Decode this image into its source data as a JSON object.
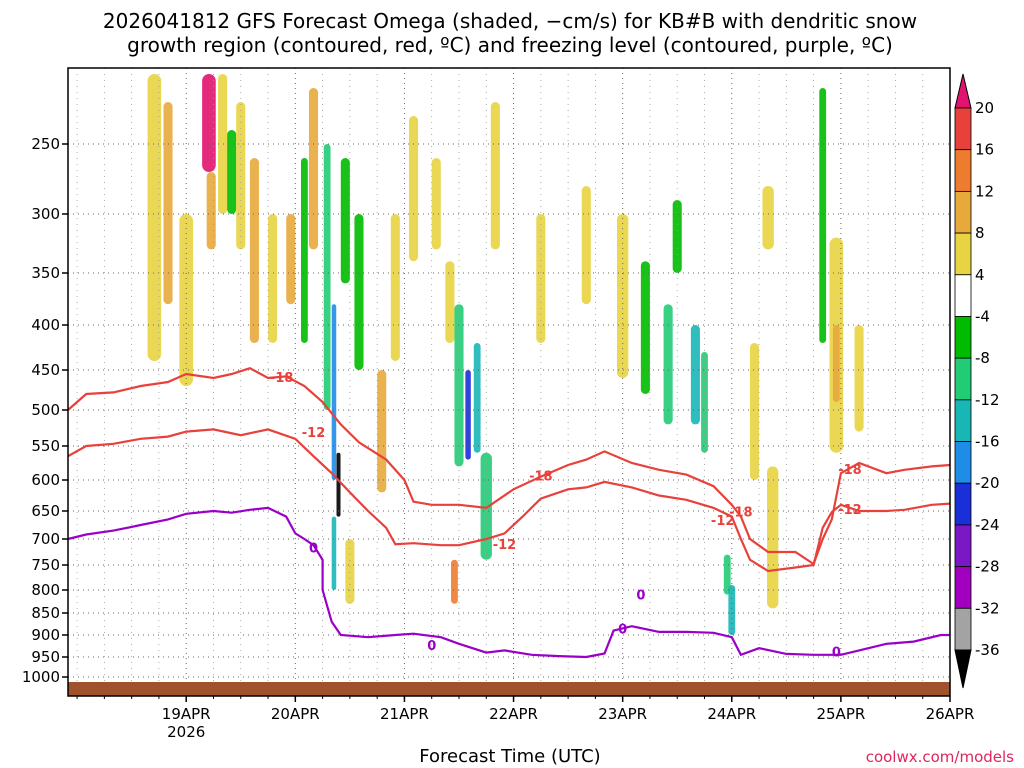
{
  "chart_data": {
    "type": "heatmap",
    "title_line1": "2026041812 GFS Forecast Omega (shaded, −cm/s) for KB#B with dendritic snow",
    "title_line2": "growth region (contoured, red, ºC) and freezing level (contoured, purple, ºC)",
    "xlabel": "Forecast Time (UTC)",
    "credit": "coolwx.com/models",
    "x_ticks": [
      {
        "label": "19APR",
        "sub": "2026",
        "hour": 12
      },
      {
        "label": "20APR",
        "sub": "",
        "hour": 36
      },
      {
        "label": "21APR",
        "sub": "",
        "hour": 60
      },
      {
        "label": "22APR",
        "sub": "",
        "hour": 84
      },
      {
        "label": "23APR",
        "sub": "",
        "hour": 108
      },
      {
        "label": "24APR",
        "sub": "",
        "hour": 132
      },
      {
        "label": "25APR",
        "sub": "",
        "hour": 156
      },
      {
        "label": "26APR",
        "sub": "",
        "hour": 180
      }
    ],
    "xlim": [
      -14,
      180
    ],
    "y_ticks": [
      250,
      300,
      350,
      400,
      450,
      500,
      550,
      600,
      650,
      700,
      750,
      800,
      850,
      900,
      950,
      1000
    ],
    "ylim": [
      200,
      1025
    ],
    "colorbar": {
      "labels": [
        "20",
        "16",
        "12",
        "8",
        "4",
        "-4",
        "-8",
        "-12",
        "-16",
        "-20",
        "-24",
        "-28",
        "-32",
        "-36"
      ],
      "colors": [
        "#e8413b",
        "#ee7c2f",
        "#e8a93c",
        "#e8d442",
        "#ffffff",
        "#00bb00",
        "#22cc77",
        "#19b6b6",
        "#1f8ce8",
        "#1b2fd9",
        "#7b17c4",
        "#a100c0",
        "#a3a3a3"
      ],
      "top_arrow": "#e01470",
      "bottom_arrow": "#000000"
    },
    "contours": [
      {
        "name": "-18C",
        "color": "#e8413b",
        "label": "-18",
        "points": [
          [
            -14,
            500
          ],
          [
            -10,
            480
          ],
          [
            -4,
            478
          ],
          [
            2,
            470
          ],
          [
            8,
            465
          ],
          [
            12,
            455
          ],
          [
            18,
            460
          ],
          [
            22,
            455
          ],
          [
            26,
            448
          ],
          [
            30,
            460
          ],
          [
            34,
            458
          ],
          [
            38,
            470
          ],
          [
            42,
            490
          ],
          [
            46,
            520
          ],
          [
            50,
            545
          ],
          [
            56,
            570
          ],
          [
            60,
            600
          ],
          [
            62,
            635
          ],
          [
            66,
            640
          ],
          [
            72,
            640
          ],
          [
            78,
            645
          ],
          [
            84,
            615
          ],
          [
            90,
            595
          ],
          [
            96,
            578
          ],
          [
            100,
            570
          ],
          [
            104,
            558
          ],
          [
            110,
            575
          ],
          [
            116,
            585
          ],
          [
            122,
            592
          ],
          [
            128,
            610
          ],
          [
            132,
            640
          ],
          [
            134,
            660
          ],
          [
            136,
            700
          ],
          [
            140,
            725
          ],
          [
            146,
            725
          ],
          [
            150,
            748
          ],
          [
            152,
            700
          ],
          [
            154,
            665
          ],
          [
            156,
            590
          ],
          [
            160,
            575
          ],
          [
            166,
            590
          ],
          [
            170,
            585
          ],
          [
            176,
            580
          ],
          [
            180,
            578
          ]
        ]
      },
      {
        "name": "-12C",
        "color": "#e8413b",
        "label": "-12",
        "points": [
          [
            -14,
            565
          ],
          [
            -10,
            550
          ],
          [
            -4,
            547
          ],
          [
            2,
            540
          ],
          [
            8,
            537
          ],
          [
            12,
            530
          ],
          [
            18,
            527
          ],
          [
            24,
            535
          ],
          [
            30,
            527
          ],
          [
            36,
            540
          ],
          [
            40,
            565
          ],
          [
            44,
            590
          ],
          [
            48,
            620
          ],
          [
            52,
            650
          ],
          [
            56,
            680
          ],
          [
            58,
            710
          ],
          [
            62,
            708
          ],
          [
            68,
            712
          ],
          [
            72,
            712
          ],
          [
            78,
            700
          ],
          [
            82,
            690
          ],
          [
            86,
            660
          ],
          [
            90,
            630
          ],
          [
            96,
            615
          ],
          [
            100,
            612
          ],
          [
            104,
            603
          ],
          [
            110,
            612
          ],
          [
            116,
            625
          ],
          [
            122,
            632
          ],
          [
            128,
            645
          ],
          [
            132,
            660
          ],
          [
            134,
            700
          ],
          [
            136,
            740
          ],
          [
            140,
            762
          ],
          [
            146,
            755
          ],
          [
            150,
            750
          ],
          [
            152,
            680
          ],
          [
            154,
            652
          ],
          [
            156,
            640
          ],
          [
            160,
            650
          ],
          [
            166,
            650
          ],
          [
            170,
            648
          ],
          [
            176,
            640
          ],
          [
            180,
            638
          ]
        ]
      },
      {
        "name": "0C",
        "color": "#9a00c8",
        "label": "0",
        "points": [
          [
            -14,
            700
          ],
          [
            -10,
            692
          ],
          [
            -4,
            685
          ],
          [
            2,
            675
          ],
          [
            8,
            665
          ],
          [
            12,
            655
          ],
          [
            18,
            650
          ],
          [
            22,
            653
          ],
          [
            26,
            648
          ],
          [
            30,
            645
          ],
          [
            34,
            660
          ],
          [
            36,
            690
          ],
          [
            38,
            700
          ],
          [
            40,
            712
          ],
          [
            42,
            740
          ],
          [
            42,
            800
          ],
          [
            44,
            870
          ],
          [
            46,
            900
          ],
          [
            52,
            905
          ],
          [
            58,
            900
          ],
          [
            62,
            897
          ],
          [
            68,
            905
          ],
          [
            72,
            920
          ],
          [
            78,
            940
          ],
          [
            82,
            935
          ],
          [
            88,
            945
          ],
          [
            94,
            948
          ],
          [
            100,
            950
          ],
          [
            104,
            942
          ],
          [
            106,
            890
          ],
          [
            110,
            880
          ],
          [
            116,
            893
          ],
          [
            122,
            893
          ],
          [
            128,
            895
          ],
          [
            132,
            905
          ],
          [
            134,
            945
          ],
          [
            138,
            930
          ],
          [
            144,
            943
          ],
          [
            150,
            945
          ],
          [
            156,
            945
          ],
          [
            160,
            935
          ],
          [
            166,
            920
          ],
          [
            172,
            915
          ],
          [
            178,
            900
          ],
          [
            180,
            900
          ]
        ]
      }
    ],
    "contour_labels": [
      {
        "text": "-18",
        "color": "red",
        "hour": 33,
        "p": 460
      },
      {
        "text": "-12",
        "color": "red",
        "hour": 40,
        "p": 532
      },
      {
        "text": "-18",
        "color": "red",
        "hour": 90,
        "p": 595
      },
      {
        "text": "-12",
        "color": "red",
        "hour": 82,
        "p": 712
      },
      {
        "text": "-18",
        "color": "red",
        "hour": 134,
        "p": 653
      },
      {
        "text": "-12",
        "color": "red",
        "hour": 130,
        "p": 668
      },
      {
        "text": "-18",
        "color": "red",
        "hour": 158,
        "p": 585
      },
      {
        "text": "-12",
        "color": "red",
        "hour": 158,
        "p": 648
      },
      {
        "text": "0",
        "color": "purple",
        "hour": 40,
        "p": 718
      },
      {
        "text": "0",
        "color": "purple",
        "hour": 66,
        "p": 925
      },
      {
        "text": "0",
        "color": "purple",
        "hour": 108,
        "p": 887
      },
      {
        "text": "0",
        "color": "purple",
        "hour": 112,
        "p": 812
      },
      {
        "text": "0",
        "color": "purple",
        "hour": 155,
        "p": 940
      }
    ],
    "omega_patches": [
      {
        "hour": 5,
        "p1": 200,
        "p2": 440,
        "w": 3,
        "v": 6
      },
      {
        "hour": 8,
        "p1": 220,
        "p2": 380,
        "w": 2,
        "v": 10
      },
      {
        "hour": 12,
        "p1": 300,
        "p2": 470,
        "w": 3,
        "v": 6
      },
      {
        "hour": 17,
        "p1": 200,
        "p2": 270,
        "w": 3,
        "v": 20
      },
      {
        "hour": 17.5,
        "p1": 270,
        "p2": 330,
        "w": 2,
        "v": 10
      },
      {
        "hour": 20,
        "p1": 200,
        "p2": 300,
        "w": 2,
        "v": 6
      },
      {
        "hour": 22,
        "p1": 240,
        "p2": 300,
        "w": 2,
        "v": -6
      },
      {
        "hour": 24,
        "p1": 220,
        "p2": 330,
        "w": 2,
        "v": 6
      },
      {
        "hour": 27,
        "p1": 260,
        "p2": 420,
        "w": 2,
        "v": 10
      },
      {
        "hour": 31,
        "p1": 300,
        "p2": 420,
        "w": 2,
        "v": 6
      },
      {
        "hour": 35,
        "p1": 300,
        "p2": 380,
        "w": 2,
        "v": 10
      },
      {
        "hour": 38,
        "p1": 260,
        "p2": 420,
        "w": 1.5,
        "v": -6
      },
      {
        "hour": 40,
        "p1": 210,
        "p2": 330,
        "w": 2,
        "v": 10
      },
      {
        "hour": 43,
        "p1": 250,
        "p2": 500,
        "w": 1.5,
        "v": -10
      },
      {
        "hour": 44.5,
        "p1": 380,
        "p2": 600,
        "w": 1,
        "v": -18
      },
      {
        "hour": 45.5,
        "p1": 560,
        "p2": 660,
        "w": 0.8,
        "v": -32
      },
      {
        "hour": 44.5,
        "p1": 660,
        "p2": 800,
        "w": 1,
        "v": -14
      },
      {
        "hour": 47,
        "p1": 260,
        "p2": 360,
        "w": 2,
        "v": -6
      },
      {
        "hour": 48,
        "p1": 700,
        "p2": 830,
        "w": 2,
        "v": 6
      },
      {
        "hour": 50,
        "p1": 300,
        "p2": 450,
        "w": 2,
        "v": -6
      },
      {
        "hour": 55,
        "p1": 450,
        "p2": 620,
        "w": 2,
        "v": 10
      },
      {
        "hour": 58,
        "p1": 300,
        "p2": 440,
        "w": 2,
        "v": 6
      },
      {
        "hour": 62,
        "p1": 230,
        "p2": 340,
        "w": 2,
        "v": 6
      },
      {
        "hour": 67,
        "p1": 260,
        "p2": 330,
        "w": 2,
        "v": 6
      },
      {
        "hour": 70,
        "p1": 340,
        "p2": 420,
        "w": 2,
        "v": 6
      },
      {
        "hour": 72,
        "p1": 380,
        "p2": 580,
        "w": 2,
        "v": -8
      },
      {
        "hour": 74,
        "p1": 450,
        "p2": 570,
        "w": 1.2,
        "v": -22
      },
      {
        "hour": 76,
        "p1": 420,
        "p2": 560,
        "w": 1.5,
        "v": -12
      },
      {
        "hour": 78,
        "p1": 560,
        "p2": 740,
        "w": 2.5,
        "v": -10
      },
      {
        "hour": 71,
        "p1": 740,
        "p2": 830,
        "w": 1.5,
        "v": 12
      },
      {
        "hour": 80,
        "p1": 220,
        "p2": 330,
        "w": 2,
        "v": 6
      },
      {
        "hour": 90,
        "p1": 300,
        "p2": 420,
        "w": 2,
        "v": 6
      },
      {
        "hour": 100,
        "p1": 280,
        "p2": 380,
        "w": 2,
        "v": 6
      },
      {
        "hour": 108,
        "p1": 300,
        "p2": 460,
        "w": 2.5,
        "v": 6
      },
      {
        "hour": 113,
        "p1": 340,
        "p2": 480,
        "w": 2,
        "v": -6
      },
      {
        "hour": 118,
        "p1": 380,
        "p2": 520,
        "w": 2,
        "v": -8
      },
      {
        "hour": 120,
        "p1": 290,
        "p2": 350,
        "w": 2,
        "v": -6
      },
      {
        "hour": 124,
        "p1": 400,
        "p2": 520,
        "w": 2,
        "v": -12
      },
      {
        "hour": 126,
        "p1": 430,
        "p2": 560,
        "w": 1.5,
        "v": -8
      },
      {
        "hour": 131,
        "p1": 730,
        "p2": 810,
        "w": 1.5,
        "v": -8
      },
      {
        "hour": 132,
        "p1": 790,
        "p2": 900,
        "w": 1.5,
        "v": -14
      },
      {
        "hour": 137,
        "p1": 420,
        "p2": 600,
        "w": 2,
        "v": 6
      },
      {
        "hour": 140,
        "p1": 280,
        "p2": 330,
        "w": 2.5,
        "v": 6
      },
      {
        "hour": 141,
        "p1": 580,
        "p2": 840,
        "w": 2.5,
        "v": 6
      },
      {
        "hour": 152,
        "p1": 210,
        "p2": 420,
        "w": 1.5,
        "v": -6
      },
      {
        "hour": 155,
        "p1": 320,
        "p2": 560,
        "w": 3,
        "v": 6
      },
      {
        "hour": 155,
        "p1": 400,
        "p2": 490,
        "w": 1.5,
        "v": 10
      },
      {
        "hour": 160,
        "p1": 400,
        "p2": 530,
        "w": 2,
        "v": 6
      }
    ],
    "ground_fill_color": "#a0522d"
  }
}
